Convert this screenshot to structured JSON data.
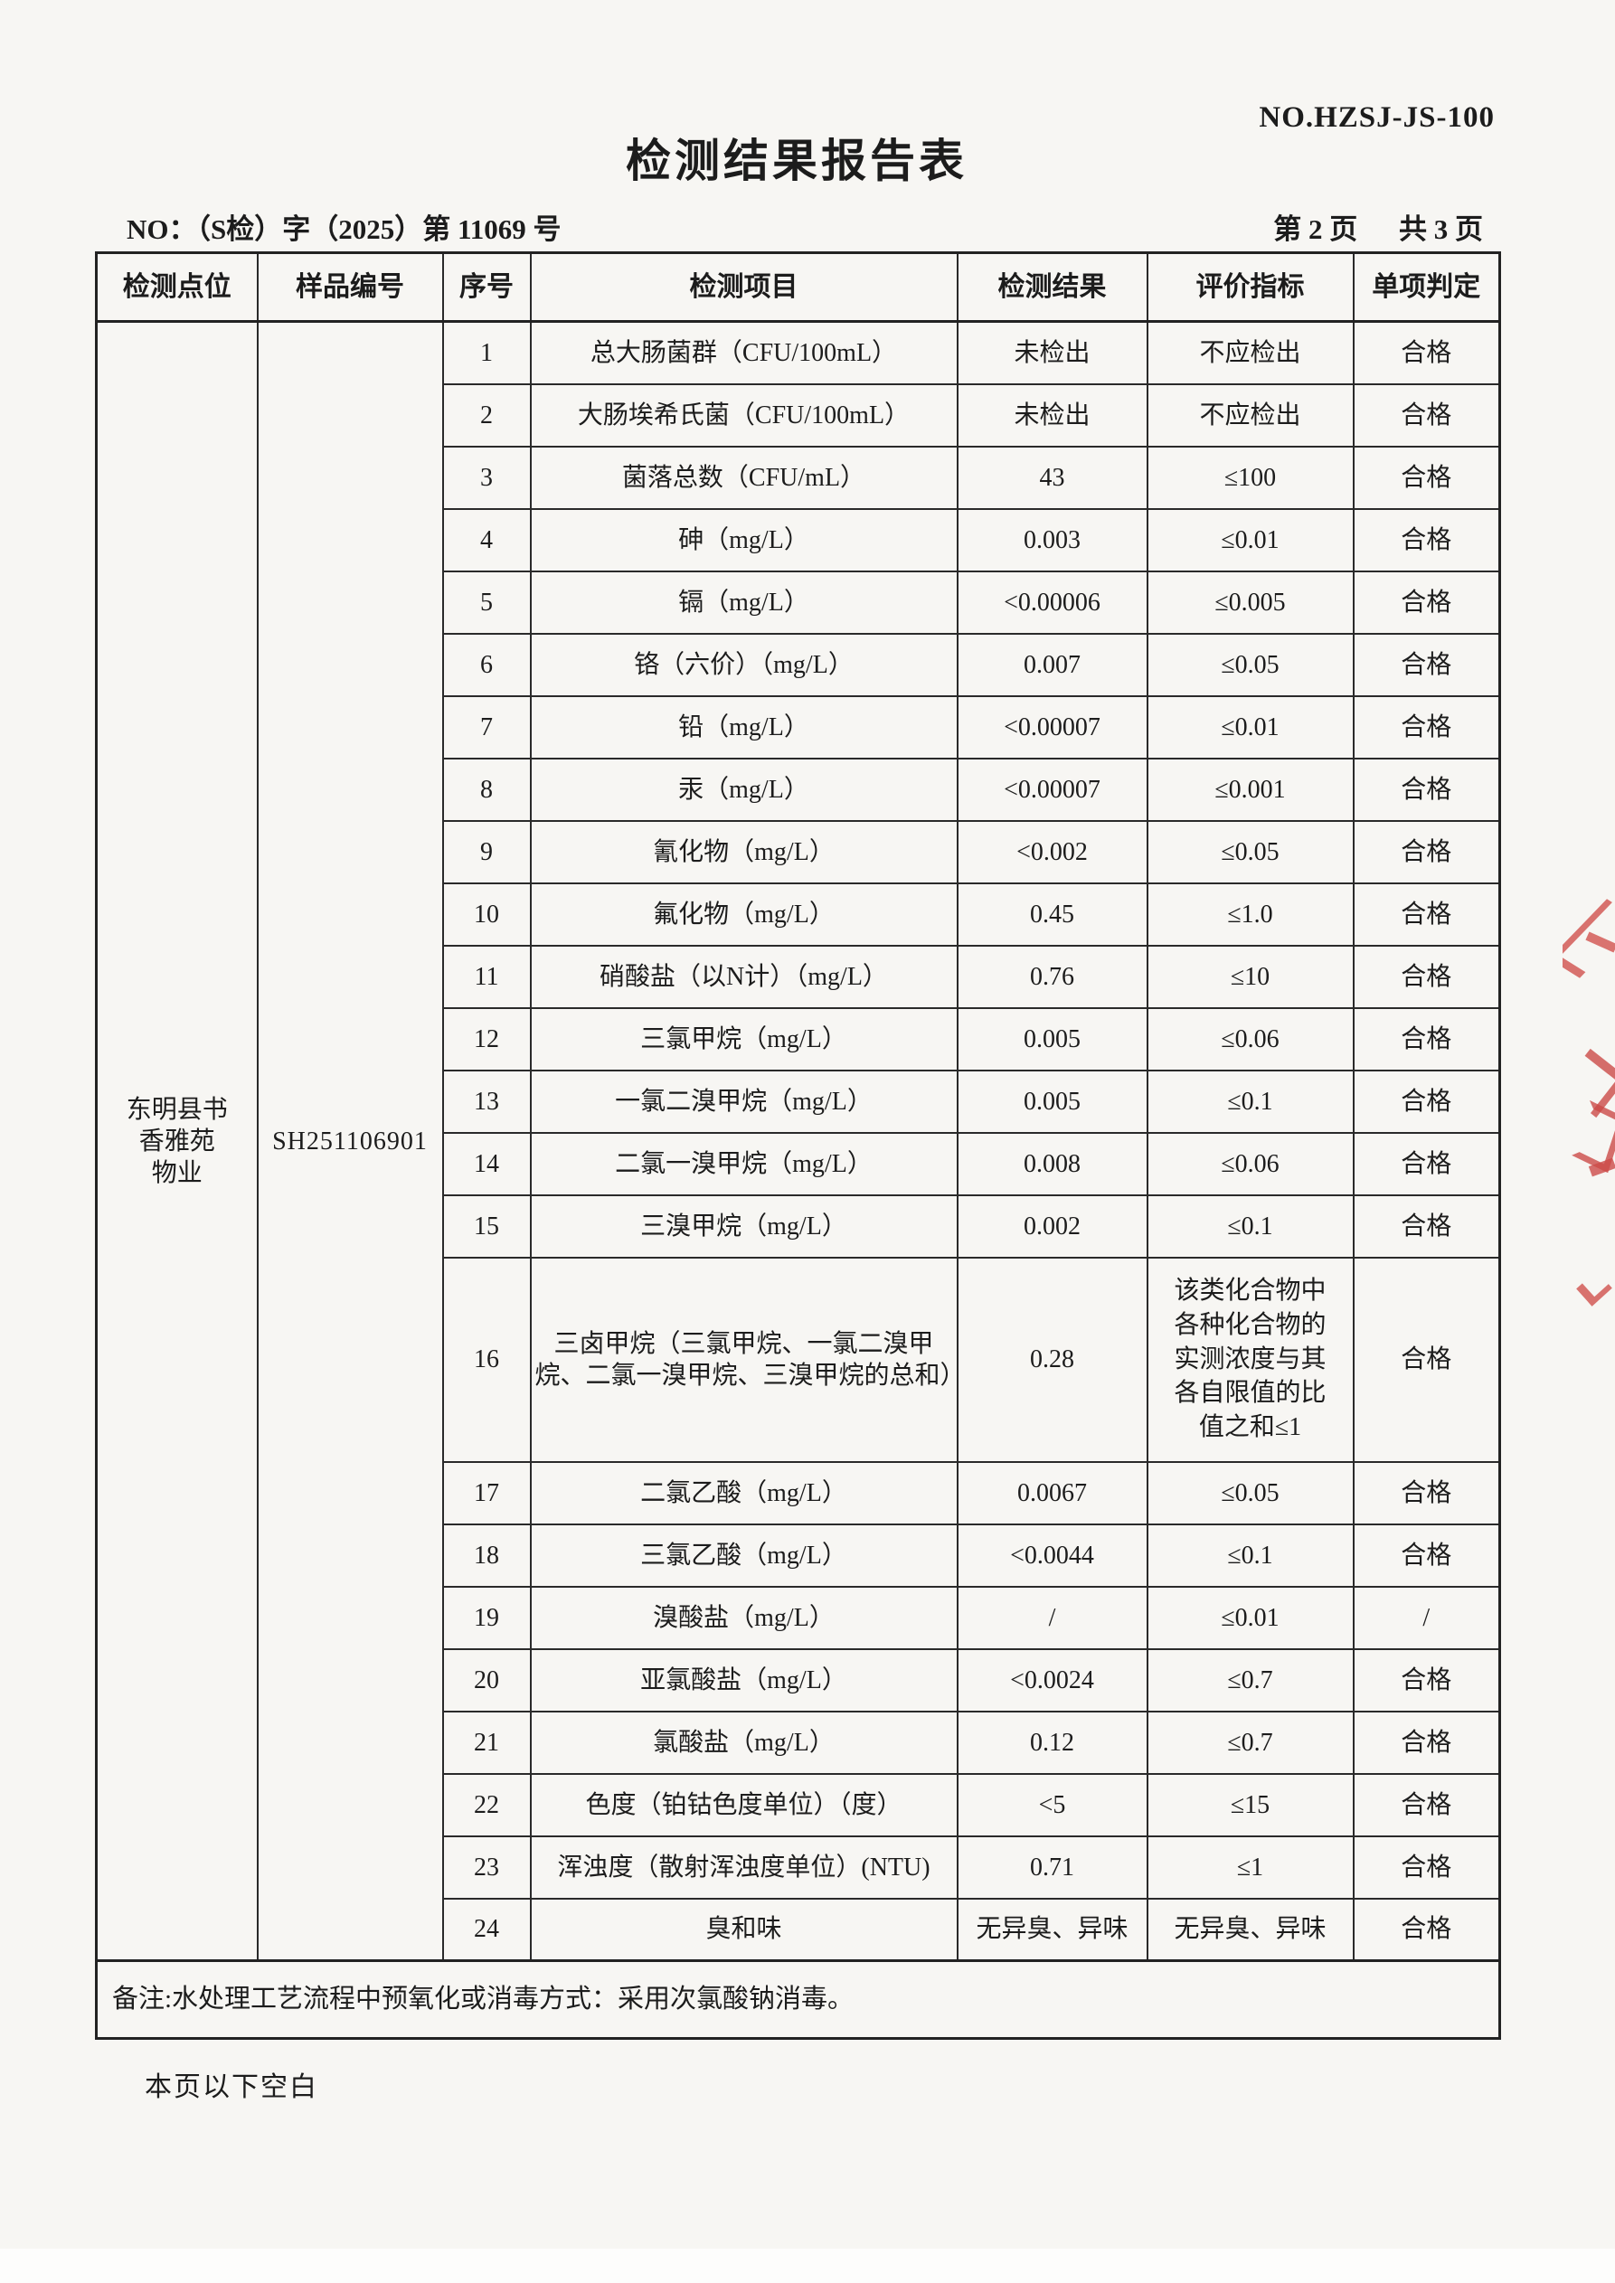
{
  "page": {
    "doc_no": "NO.HZSJ-JS-100",
    "title": "检测结果报告表",
    "report_no": "NO：（S检）字（2025）第 11069 号",
    "page_label_left": "第 2 页",
    "page_label_right": "共 3 页",
    "blank_note": "本页以下空白"
  },
  "table": {
    "headers": [
      "检测点位",
      "样品编号",
      "序号",
      "检测项目",
      "检测结果",
      "评价指标",
      "单项判定"
    ],
    "site_lines": [
      "东明县书",
      "香雅苑",
      "物业"
    ],
    "sample_no": "SH251106901",
    "rows": [
      {
        "no": "1",
        "item": "总大肠菌群（CFU/100mL）",
        "result": "未检出",
        "limit": "不应检出",
        "judge": "合格"
      },
      {
        "no": "2",
        "item": "大肠埃希氏菌（CFU/100mL）",
        "result": "未检出",
        "limit": "不应检出",
        "judge": "合格"
      },
      {
        "no": "3",
        "item": "菌落总数（CFU/mL）",
        "result": "43",
        "limit": "≤100",
        "judge": "合格"
      },
      {
        "no": "4",
        "item": "砷（mg/L）",
        "result": "0.003",
        "limit": "≤0.01",
        "judge": "合格"
      },
      {
        "no": "5",
        "item": "镉（mg/L）",
        "result": "<0.00006",
        "limit": "≤0.005",
        "judge": "合格"
      },
      {
        "no": "6",
        "item": "铬（六价）（mg/L）",
        "result": "0.007",
        "limit": "≤0.05",
        "judge": "合格"
      },
      {
        "no": "7",
        "item": "铅（mg/L）",
        "result": "<0.00007",
        "limit": "≤0.01",
        "judge": "合格"
      },
      {
        "no": "8",
        "item": "汞（mg/L）",
        "result": "<0.00007",
        "limit": "≤0.001",
        "judge": "合格"
      },
      {
        "no": "9",
        "item": "氰化物（mg/L）",
        "result": "<0.002",
        "limit": "≤0.05",
        "judge": "合格"
      },
      {
        "no": "10",
        "item": "氟化物（mg/L）",
        "result": "0.45",
        "limit": "≤1.0",
        "judge": "合格"
      },
      {
        "no": "11",
        "item": "硝酸盐（以N计）（mg/L）",
        "result": "0.76",
        "limit": "≤10",
        "judge": "合格"
      },
      {
        "no": "12",
        "item": "三氯甲烷（mg/L）",
        "result": "0.005",
        "limit": "≤0.06",
        "judge": "合格"
      },
      {
        "no": "13",
        "item": "一氯二溴甲烷（mg/L）",
        "result": "0.005",
        "limit": "≤0.1",
        "judge": "合格"
      },
      {
        "no": "14",
        "item": "二氯一溴甲烷（mg/L）",
        "result": "0.008",
        "limit": "≤0.06",
        "judge": "合格"
      },
      {
        "no": "15",
        "item": "三溴甲烷（mg/L）",
        "result": "0.002",
        "limit": "≤0.1",
        "judge": "合格"
      },
      {
        "no": "16",
        "item": "三卤甲烷（三氯甲烷、一氯二溴甲烷、二氯一溴甲烷、三溴甲烷的总和）",
        "result": "0.28",
        "limit": "该类化合物中各种化合物的实测浓度与其各自限值的比值之和≤1",
        "judge": "合格",
        "tall": true
      },
      {
        "no": "17",
        "item": "二氯乙酸（mg/L）",
        "result": "0.0067",
        "limit": "≤0.05",
        "judge": "合格"
      },
      {
        "no": "18",
        "item": "三氯乙酸（mg/L）",
        "result": "<0.0044",
        "limit": "≤0.1",
        "judge": "合格"
      },
      {
        "no": "19",
        "item": "溴酸盐（mg/L）",
        "result": "/",
        "limit": "≤0.01",
        "judge": "/"
      },
      {
        "no": "20",
        "item": "亚氯酸盐（mg/L）",
        "result": "<0.0024",
        "limit": "≤0.7",
        "judge": "合格"
      },
      {
        "no": "21",
        "item": "氯酸盐（mg/L）",
        "result": "0.12",
        "limit": "≤0.7",
        "judge": "合格"
      },
      {
        "no": "22",
        "item": "色度（铂钴色度单位）（度）",
        "result": "<5",
        "limit": "≤15",
        "judge": "合格"
      },
      {
        "no": "23",
        "item": "浑浊度（散射浑浊度单位）(NTU)",
        "result": "0.71",
        "limit": "≤1",
        "judge": "合格"
      },
      {
        "no": "24",
        "item": "臭和味",
        "result": "无异臭、异味",
        "limit": "无异臭、异味",
        "judge": "合格"
      }
    ],
    "remark": "备注:水处理工艺流程中预氧化或消毒方式：采用次氯酸钠消毒。"
  },
  "stamp": {
    "color": "#cc4b48"
  }
}
